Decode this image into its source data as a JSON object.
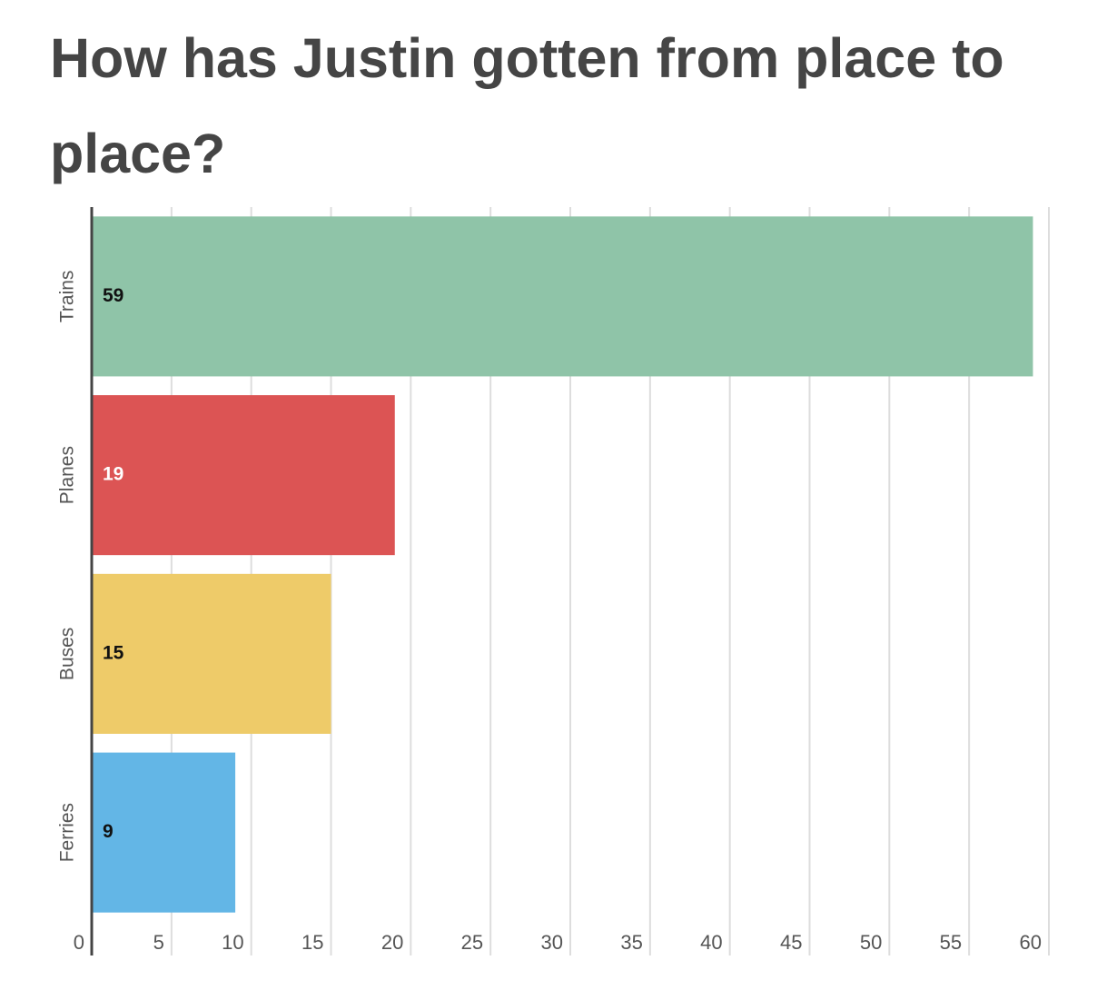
{
  "chart_data": {
    "type": "bar",
    "orientation": "horizontal",
    "title": "How has Justin gotten from place to place?",
    "categories": [
      "Trains",
      "Planes",
      "Buses",
      "Ferries"
    ],
    "values": [
      59,
      19,
      15,
      9
    ],
    "colors": [
      "#8fc4a8",
      "#dc5454",
      "#eecb69",
      "#63b6e6"
    ],
    "xlim": [
      0,
      60
    ],
    "xticks": [
      0,
      5,
      10,
      15,
      20,
      25,
      30,
      35,
      40,
      45,
      50,
      55,
      60
    ],
    "grid": true
  }
}
